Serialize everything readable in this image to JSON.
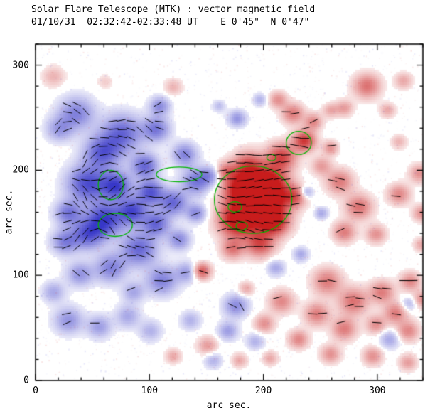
{
  "chart_data": {
    "type": "heatmap",
    "title": "Solar Flare Telescope (MTK) : vector magnetic field",
    "subtitle": "01/10/31  02:32:42-02:33:48 UT    E 0'45\"  N 0'47\"",
    "xlabel": "arc sec.",
    "ylabel": "arc sec.",
    "xlim": [
      0,
      340
    ],
    "ylim": [
      0,
      320
    ],
    "xticks": [
      0,
      100,
      200,
      300
    ],
    "yticks": [
      0,
      100,
      200,
      300
    ],
    "minor_tick_step": 20,
    "encoding": "red = positive magnetic polarity, blue = negative polarity, black segments = transverse field vectors, green lines = contours",
    "colors": {
      "positive": "#c81c1c",
      "negative": "#3737c8",
      "contour": "#00b400",
      "vector": "#000000",
      "frame": "#000000",
      "background": "#ffffff"
    },
    "blobs": [
      [
        35,
        255,
        16,
        -0.55
      ],
      [
        20,
        240,
        12,
        -0.4
      ],
      [
        75,
        236,
        18,
        -0.7
      ],
      [
        58,
        218,
        16,
        -0.75
      ],
      [
        45,
        188,
        18,
        -0.85
      ],
      [
        70,
        186,
        13,
        -0.9
      ],
      [
        60,
        154,
        16,
        -0.95
      ],
      [
        84,
        162,
        13,
        -0.85
      ],
      [
        45,
        140,
        14,
        -0.75
      ],
      [
        28,
        160,
        12,
        -0.6
      ],
      [
        25,
        133,
        12,
        -0.55
      ],
      [
        90,
        126,
        16,
        -0.7
      ],
      [
        65,
        108,
        14,
        -0.55
      ],
      [
        38,
        102,
        12,
        -0.45
      ],
      [
        110,
        96,
        14,
        -0.55
      ],
      [
        132,
        104,
        10,
        -0.4
      ],
      [
        120,
        170,
        12,
        -0.7
      ],
      [
        140,
        190,
        13,
        -0.6
      ],
      [
        152,
        196,
        9,
        -0.4
      ],
      [
        130,
        216,
        11,
        -0.55
      ],
      [
        105,
        240,
        12,
        -0.6
      ],
      [
        108,
        262,
        9,
        -0.5
      ],
      [
        95,
        205,
        12,
        -0.7
      ],
      [
        100,
        180,
        12,
        -0.8
      ],
      [
        105,
        150,
        12,
        -0.7
      ],
      [
        125,
        135,
        10,
        -0.5
      ],
      [
        85,
        85,
        10,
        -0.35
      ],
      [
        140,
        160,
        9,
        -0.5
      ],
      [
        28,
        58,
        13,
        -0.45
      ],
      [
        55,
        52,
        11,
        -0.4
      ],
      [
        80,
        62,
        11,
        -0.35
      ],
      [
        100,
        48,
        10,
        -0.3
      ],
      [
        135,
        58,
        9,
        -0.3
      ],
      [
        15,
        85,
        10,
        -0.35
      ],
      [
        176,
        250,
        8,
        -0.45
      ],
      [
        196,
        268,
        6,
        -0.3
      ],
      [
        160,
        262,
        6,
        -0.25
      ],
      [
        237,
        180,
        6,
        -0.4
      ],
      [
        250,
        160,
        6,
        -0.35
      ],
      [
        232,
        121,
        7,
        -0.35
      ],
      [
        210,
        108,
        8,
        -0.35
      ],
      [
        175,
        72,
        11,
        -0.5
      ],
      [
        168,
        48,
        9,
        -0.4
      ],
      [
        192,
        38,
        8,
        -0.3
      ],
      [
        310,
        40,
        9,
        -0.35
      ],
      [
        327,
        74,
        7,
        -0.3
      ],
      [
        155,
        20,
        8,
        -0.3
      ],
      [
        190,
        170,
        24,
        0.95
      ],
      [
        176,
        152,
        16,
        0.9
      ],
      [
        205,
        190,
        16,
        0.85
      ],
      [
        186,
        205,
        14,
        0.7
      ],
      [
        215,
        214,
        13,
        0.75
      ],
      [
        235,
        229,
        10,
        0.85
      ],
      [
        209,
        151,
        13,
        0.8
      ],
      [
        196,
        131,
        13,
        0.7
      ],
      [
        172,
        126,
        10,
        0.5
      ],
      [
        226,
        176,
        11,
        0.6
      ],
      [
        166,
        200,
        9,
        0.45
      ],
      [
        180,
        185,
        14,
        0.85
      ],
      [
        200,
        170,
        18,
        0.9
      ],
      [
        250,
        205,
        9,
        0.35
      ],
      [
        225,
        255,
        10,
        0.5
      ],
      [
        212,
        268,
        8,
        0.4
      ],
      [
        243,
        247,
        8,
        0.45
      ],
      [
        258,
        258,
        7,
        0.3
      ],
      [
        290,
        281,
        12,
        0.55
      ],
      [
        270,
        260,
        8,
        0.35
      ],
      [
        308,
        258,
        7,
        0.3
      ],
      [
        322,
        286,
        8,
        0.3
      ],
      [
        266,
        190,
        12,
        0.5
      ],
      [
        283,
        166,
        12,
        0.55
      ],
      [
        270,
        142,
        10,
        0.5
      ],
      [
        298,
        140,
        9,
        0.4
      ],
      [
        318,
        178,
        10,
        0.45
      ],
      [
        336,
        198,
        9,
        0.4
      ],
      [
        338,
        160,
        8,
        0.4
      ],
      [
        258,
        222,
        7,
        0.4
      ],
      [
        318,
        228,
        7,
        0.25
      ],
      [
        338,
        130,
        7,
        0.3
      ],
      [
        255,
        95,
        13,
        0.5
      ],
      [
        278,
        76,
        13,
        0.55
      ],
      [
        303,
        85,
        11,
        0.5
      ],
      [
        328,
        95,
        9,
        0.45
      ],
      [
        246,
        64,
        11,
        0.5
      ],
      [
        270,
        50,
        11,
        0.5
      ],
      [
        298,
        54,
        9,
        0.4
      ],
      [
        326,
        48,
        10,
        0.45
      ],
      [
        215,
        76,
        11,
        0.45
      ],
      [
        200,
        55,
        9,
        0.4
      ],
      [
        230,
        40,
        9,
        0.45
      ],
      [
        258,
        26,
        9,
        0.4
      ],
      [
        295,
        24,
        9,
        0.4
      ],
      [
        326,
        18,
        8,
        0.35
      ],
      [
        315,
        65,
        10,
        0.5
      ],
      [
        338,
        78,
        8,
        0.4
      ],
      [
        184,
        88,
        7,
        0.3
      ],
      [
        150,
        34,
        9,
        0.35
      ],
      [
        120,
        24,
        7,
        0.3
      ],
      [
        178,
        20,
        7,
        0.3
      ],
      [
        205,
        22,
        7,
        0.3
      ],
      [
        145,
        105,
        8,
        0.7
      ],
      [
        15,
        290,
        10,
        0.25
      ],
      [
        120,
        280,
        8,
        0.25
      ],
      [
        60,
        285,
        7,
        0.15
      ]
    ],
    "contours": [
      [
        66,
        186,
        11,
        14
      ],
      [
        70,
        148,
        15,
        11
      ],
      [
        126,
        196,
        20,
        7
      ],
      [
        191,
        172,
        34,
        32
      ],
      [
        175,
        165,
        6,
        5
      ],
      [
        181,
        147,
        5,
        4
      ],
      [
        231,
        226,
        11,
        11
      ],
      [
        207,
        212,
        4,
        3
      ]
    ],
    "vectors": {
      "grid_step": 8,
      "length": 8,
      "threshold": 0.34,
      "y_range": [
        55,
        268
      ]
    },
    "noise": {
      "seed": 20011031,
      "count": 3200
    }
  }
}
